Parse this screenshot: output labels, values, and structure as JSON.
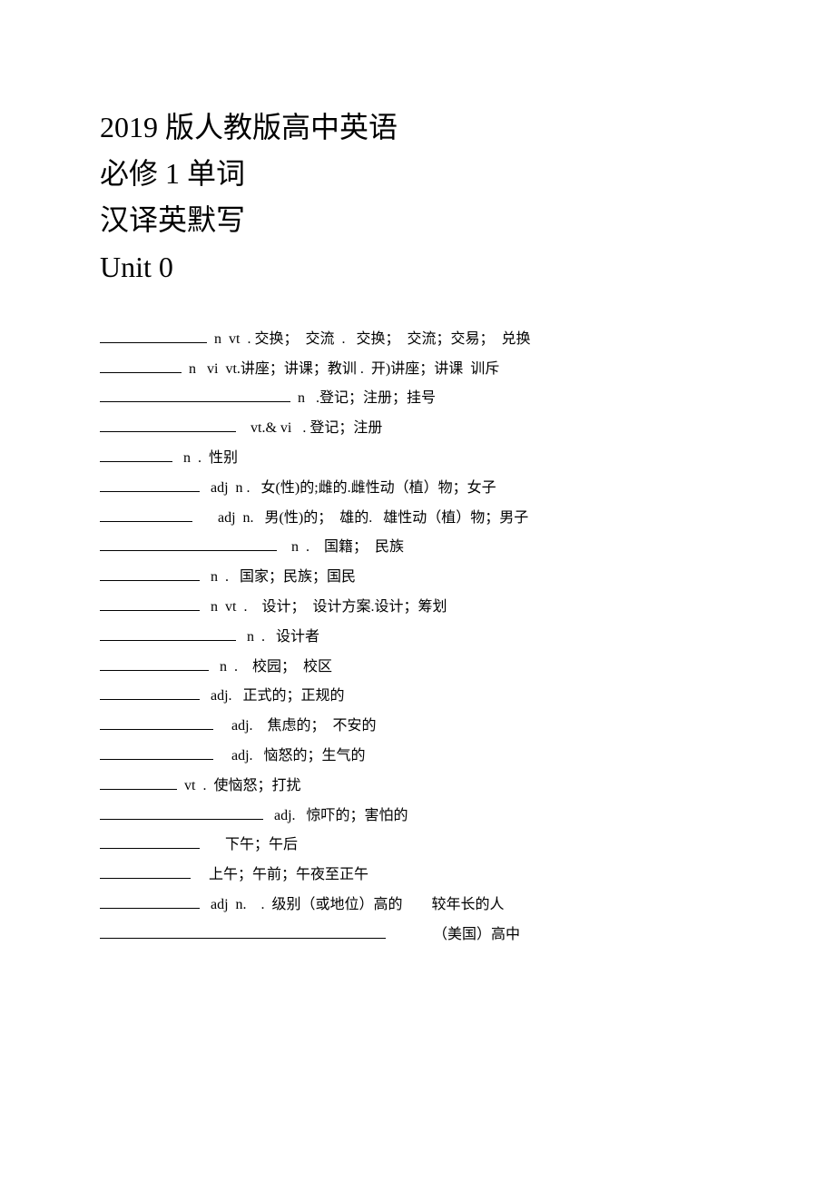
{
  "heading": {
    "line1": "2019 版人教版高中英语",
    "line2": "必修 1 单词",
    "line3": "汉译英默写",
    "line4": "Unit 0"
  },
  "entries": [
    {
      "blank_width": 118,
      "rest": " n  vt  . 交换；  交流  .   交换；  交流；交易；  兑换"
    },
    {
      "blank_width": 90,
      "rest": " n   vi  vt.讲座；讲课；教训 .  开)讲座；讲课  训斥"
    },
    {
      "blank_width": 210,
      "rest": " n   .登记；注册；挂号"
    },
    {
      "blank_width": 150,
      "rest": "   vt.& vi   . 登记；注册"
    },
    {
      "blank_width": 80,
      "rest": "  n  .  性别"
    },
    {
      "blank_width": 110,
      "rest": "  adj  n .   女(性)的;雌的.雌性动（植）物；女子"
    },
    {
      "blank_width": 102,
      "rest": "      adj  n.   男(性)的；  雄的.   雄性动（植）物；男子"
    },
    {
      "blank_width": 195,
      "rest": "   n  .    国籍；  民族"
    },
    {
      "blank_width": 110,
      "rest": "  n  .   国家；民族；国民"
    },
    {
      "blank_width": 110,
      "rest": "  n  vt  .    设计；  设计方案.设计；筹划"
    },
    {
      "blank_width": 150,
      "rest": "  n  .   设计者"
    },
    {
      "blank_width": 120,
      "rest": "  n  .    校园；  校区"
    },
    {
      "blank_width": 110,
      "rest": "  adj.   正式的；正规的"
    },
    {
      "blank_width": 125,
      "rest": "    adj.    焦虑的；  不安的"
    },
    {
      "blank_width": 125,
      "rest": "    adj.   恼怒的；生气的"
    },
    {
      "blank_width": 85,
      "rest": " vt  .  使恼怒；打扰"
    },
    {
      "blank_width": 180,
      "rest": "  adj.   惊吓的；害怕的"
    },
    {
      "blank_width": 110,
      "rest": "      下午；午后"
    },
    {
      "blank_width": 100,
      "rest": "    上午；午前；午夜至正午"
    },
    {
      "blank_width": 110,
      "rest": "  adj  n.    .  级别（或地位）高的        较年长的人"
    },
    {
      "blank_width": 315,
      "rest": "            （美国）高中"
    }
  ]
}
